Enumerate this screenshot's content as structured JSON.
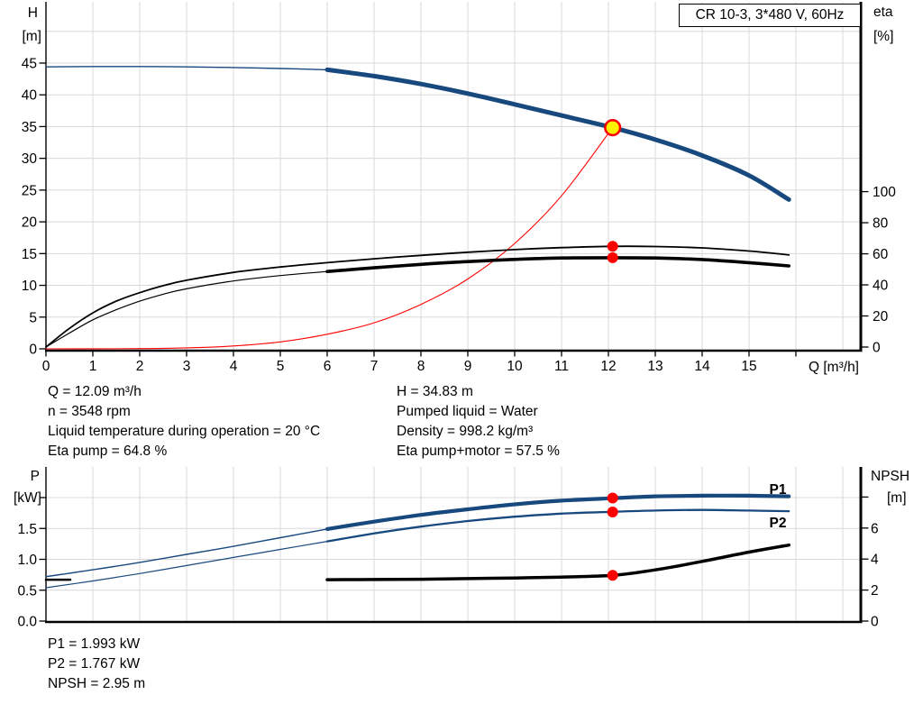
{
  "header": {
    "title_box": "CR 10-3, 3*480 V, 60Hz"
  },
  "top_chart": {
    "left_axis": {
      "name": "H",
      "unit": "[m]",
      "ticks": [
        0,
        5,
        10,
        15,
        20,
        25,
        30,
        35,
        40,
        45
      ]
    },
    "right_axis": {
      "name": "eta",
      "unit": "[%]",
      "ticks": [
        0,
        20,
        40,
        60,
        80,
        100
      ]
    },
    "x_axis": {
      "label": "Q [m³/h]",
      "ticks": [
        0,
        1,
        2,
        3,
        4,
        5,
        6,
        7,
        8,
        9,
        10,
        11,
        12,
        13,
        14,
        15
      ]
    }
  },
  "bottom_chart": {
    "left_axis": {
      "name": "P",
      "unit": "[kW]",
      "ticks": [
        "0.0",
        "0.5",
        "1.0",
        "1.5"
      ]
    },
    "right_axis": {
      "name": "NPSH",
      "unit": "[m]",
      "ticks": [
        0,
        2,
        4,
        6
      ]
    },
    "curve_labels": {
      "p1": "P1",
      "p2": "P2"
    }
  },
  "results_top": {
    "column1": [
      "Q = 12.09 m³/h",
      "n = 3548 rpm",
      "Liquid temperature during operation = 20 °C",
      "Eta pump = 64.8 %"
    ],
    "column2": [
      "H = 34.83 m",
      "Pumped liquid = Water",
      "Density = 998.2 kg/m³",
      "Eta pump+motor = 57.5 %"
    ]
  },
  "results_bottom": [
    "P1 = 1.993 kW",
    "P2 = 1.767 kW",
    "NPSH = 2.95 m"
  ],
  "colors": {
    "curve_blue": "#18497E",
    "curve_black": "#000000",
    "marker_red": "#FF0000",
    "duty_fill": "#FFF200",
    "grid": "#D8D8D8",
    "axis": "#000000"
  },
  "chart_data": [
    {
      "type": "line",
      "title": "CR 10-3, 3*480 V, 60Hz",
      "xlabel": "Q [m³/h]",
      "ylabel_left": "H [m]",
      "ylabel_right": "eta [%]",
      "xlim": [
        0,
        17.35
      ],
      "ylim_left": [
        0,
        55
      ],
      "ylim_right": [
        0,
        223
      ],
      "grid": true,
      "series": [
        {
          "name": "H pump curve",
          "axis": "left",
          "thick_from": 6,
          "points": [
            [
              0,
              44.4
            ],
            [
              1,
              44.45
            ],
            [
              2,
              44.45
            ],
            [
              3,
              44.4
            ],
            [
              4,
              44.3
            ],
            [
              5,
              44.15
            ],
            [
              6,
              43.95
            ],
            [
              7,
              42.95
            ],
            [
              8,
              41.7
            ],
            [
              9,
              40.2
            ],
            [
              10,
              38.5
            ],
            [
              11,
              36.75
            ],
            [
              12.09,
              34.83
            ],
            [
              13,
              32.95
            ],
            [
              14,
              30.45
            ],
            [
              15,
              27.3
            ],
            [
              15.85,
              23.5
            ]
          ]
        },
        {
          "name": "System curve",
          "axis": "left",
          "points": [
            [
              0,
              0
            ],
            [
              1,
              0.01
            ],
            [
              2,
              0.04
            ],
            [
              3,
              0.15
            ],
            [
              4,
              0.45
            ],
            [
              5,
              1.1
            ],
            [
              6,
              2.3
            ],
            [
              7,
              4.1
            ],
            [
              8,
              7.0
            ],
            [
              9,
              11.0
            ],
            [
              10,
              16.6
            ],
            [
              11,
              24.1
            ],
            [
              12.09,
              34.83
            ]
          ]
        },
        {
          "name": "Eta pump",
          "axis": "right",
          "points": [
            [
              0,
              0
            ],
            [
              0.5,
              12
            ],
            [
              1,
              22
            ],
            [
              1.5,
              29.5
            ],
            [
              2,
              35
            ],
            [
              2.5,
              39.5
            ],
            [
              3,
              43
            ],
            [
              4,
              48
            ],
            [
              5,
              51.5
            ],
            [
              6,
              54.3
            ],
            [
              7,
              56.8
            ],
            [
              8,
              59
            ],
            [
              9,
              61
            ],
            [
              10,
              62.7
            ],
            [
              11,
              64
            ],
            [
              12.09,
              64.8
            ],
            [
              13,
              64.7
            ],
            [
              14,
              63.8
            ],
            [
              15,
              61.8
            ],
            [
              15.85,
              59.3
            ]
          ]
        },
        {
          "name": "Eta pump+motor",
          "axis": "right",
          "thick_from": 6,
          "points": [
            [
              0,
              0
            ],
            [
              0.5,
              9
            ],
            [
              1,
              17.5
            ],
            [
              1.5,
              24
            ],
            [
              2,
              29.5
            ],
            [
              2.5,
              34
            ],
            [
              3,
              37.5
            ],
            [
              4,
              42.5
            ],
            [
              5,
              46
            ],
            [
              6,
              48.6
            ],
            [
              7,
              51
            ],
            [
              8,
              53.2
            ],
            [
              9,
              55
            ],
            [
              10,
              56.4
            ],
            [
              11,
              57.3
            ],
            [
              12.09,
              57.5
            ],
            [
              13,
              57.3
            ],
            [
              14,
              56.3
            ],
            [
              15,
              54.3
            ],
            [
              15.85,
              52.2
            ]
          ]
        }
      ],
      "markers": [
        {
          "label": "duty point",
          "q": 12.09,
          "value": 34.83,
          "axis": "left",
          "style": "yellow-red-ring"
        },
        {
          "label": "eta pump at duty",
          "q": 12.09,
          "value": 64.8,
          "axis": "right",
          "style": "red-dot"
        },
        {
          "label": "eta pump+motor at duty",
          "q": 12.09,
          "value": 57.5,
          "axis": "right",
          "style": "red-dot"
        }
      ]
    },
    {
      "type": "line",
      "title": "",
      "xlabel": "",
      "ylabel_left": "P [kW]",
      "ylabel_right": "NPSH [m]",
      "xlim": [
        0,
        17.35
      ],
      "ylim_left": [
        0,
        2.5
      ],
      "ylim_right": [
        0,
        10
      ],
      "grid": true,
      "series": [
        {
          "name": "P1",
          "axis": "left",
          "thick_from": 6,
          "points": [
            [
              0,
              0.72
            ],
            [
              1,
              0.83
            ],
            [
              2,
              0.95
            ],
            [
              3,
              1.08
            ],
            [
              4,
              1.21
            ],
            [
              5,
              1.35
            ],
            [
              6,
              1.49
            ],
            [
              7,
              1.61
            ],
            [
              8,
              1.72
            ],
            [
              9,
              1.81
            ],
            [
              10,
              1.89
            ],
            [
              11,
              1.95
            ],
            [
              12.09,
              1.99
            ],
            [
              13,
              2.02
            ],
            [
              14,
              2.03
            ],
            [
              15,
              2.03
            ],
            [
              15.85,
              2.02
            ]
          ]
        },
        {
          "name": "P2",
          "axis": "left",
          "thick_from": 6,
          "points": [
            [
              0,
              0.54
            ],
            [
              1,
              0.65
            ],
            [
              2,
              0.77
            ],
            [
              3,
              0.9
            ],
            [
              4,
              1.03
            ],
            [
              5,
              1.16
            ],
            [
              6,
              1.29
            ],
            [
              7,
              1.42
            ],
            [
              8,
              1.53
            ],
            [
              9,
              1.62
            ],
            [
              10,
              1.69
            ],
            [
              11,
              1.74
            ],
            [
              12.09,
              1.77
            ],
            [
              13,
              1.79
            ],
            [
              14,
              1.8
            ],
            [
              15,
              1.79
            ],
            [
              15.85,
              1.78
            ]
          ]
        },
        {
          "name": "NPSH",
          "axis": "right",
          "points": [
            [
              6,
              2.67
            ],
            [
              7,
              2.68
            ],
            [
              8,
              2.7
            ],
            [
              9,
              2.74
            ],
            [
              10,
              2.78
            ],
            [
              11,
              2.84
            ],
            [
              12.09,
              2.95
            ],
            [
              13,
              3.3
            ],
            [
              14,
              3.85
            ],
            [
              15,
              4.45
            ],
            [
              15.85,
              4.9
            ]
          ]
        },
        {
          "name": "NPSH low-flow stub",
          "axis": "right",
          "points": [
            [
              0,
              2.67
            ],
            [
              0.52,
              2.67
            ]
          ]
        }
      ],
      "markers": [
        {
          "label": "P1 at duty",
          "q": 12.09,
          "value": 1.993,
          "axis": "left",
          "style": "red-dot"
        },
        {
          "label": "P2 at duty",
          "q": 12.09,
          "value": 1.767,
          "axis": "left",
          "style": "red-dot"
        },
        {
          "label": "NPSH at duty",
          "q": 12.09,
          "value": 2.95,
          "axis": "right",
          "style": "red-dot"
        }
      ]
    }
  ]
}
